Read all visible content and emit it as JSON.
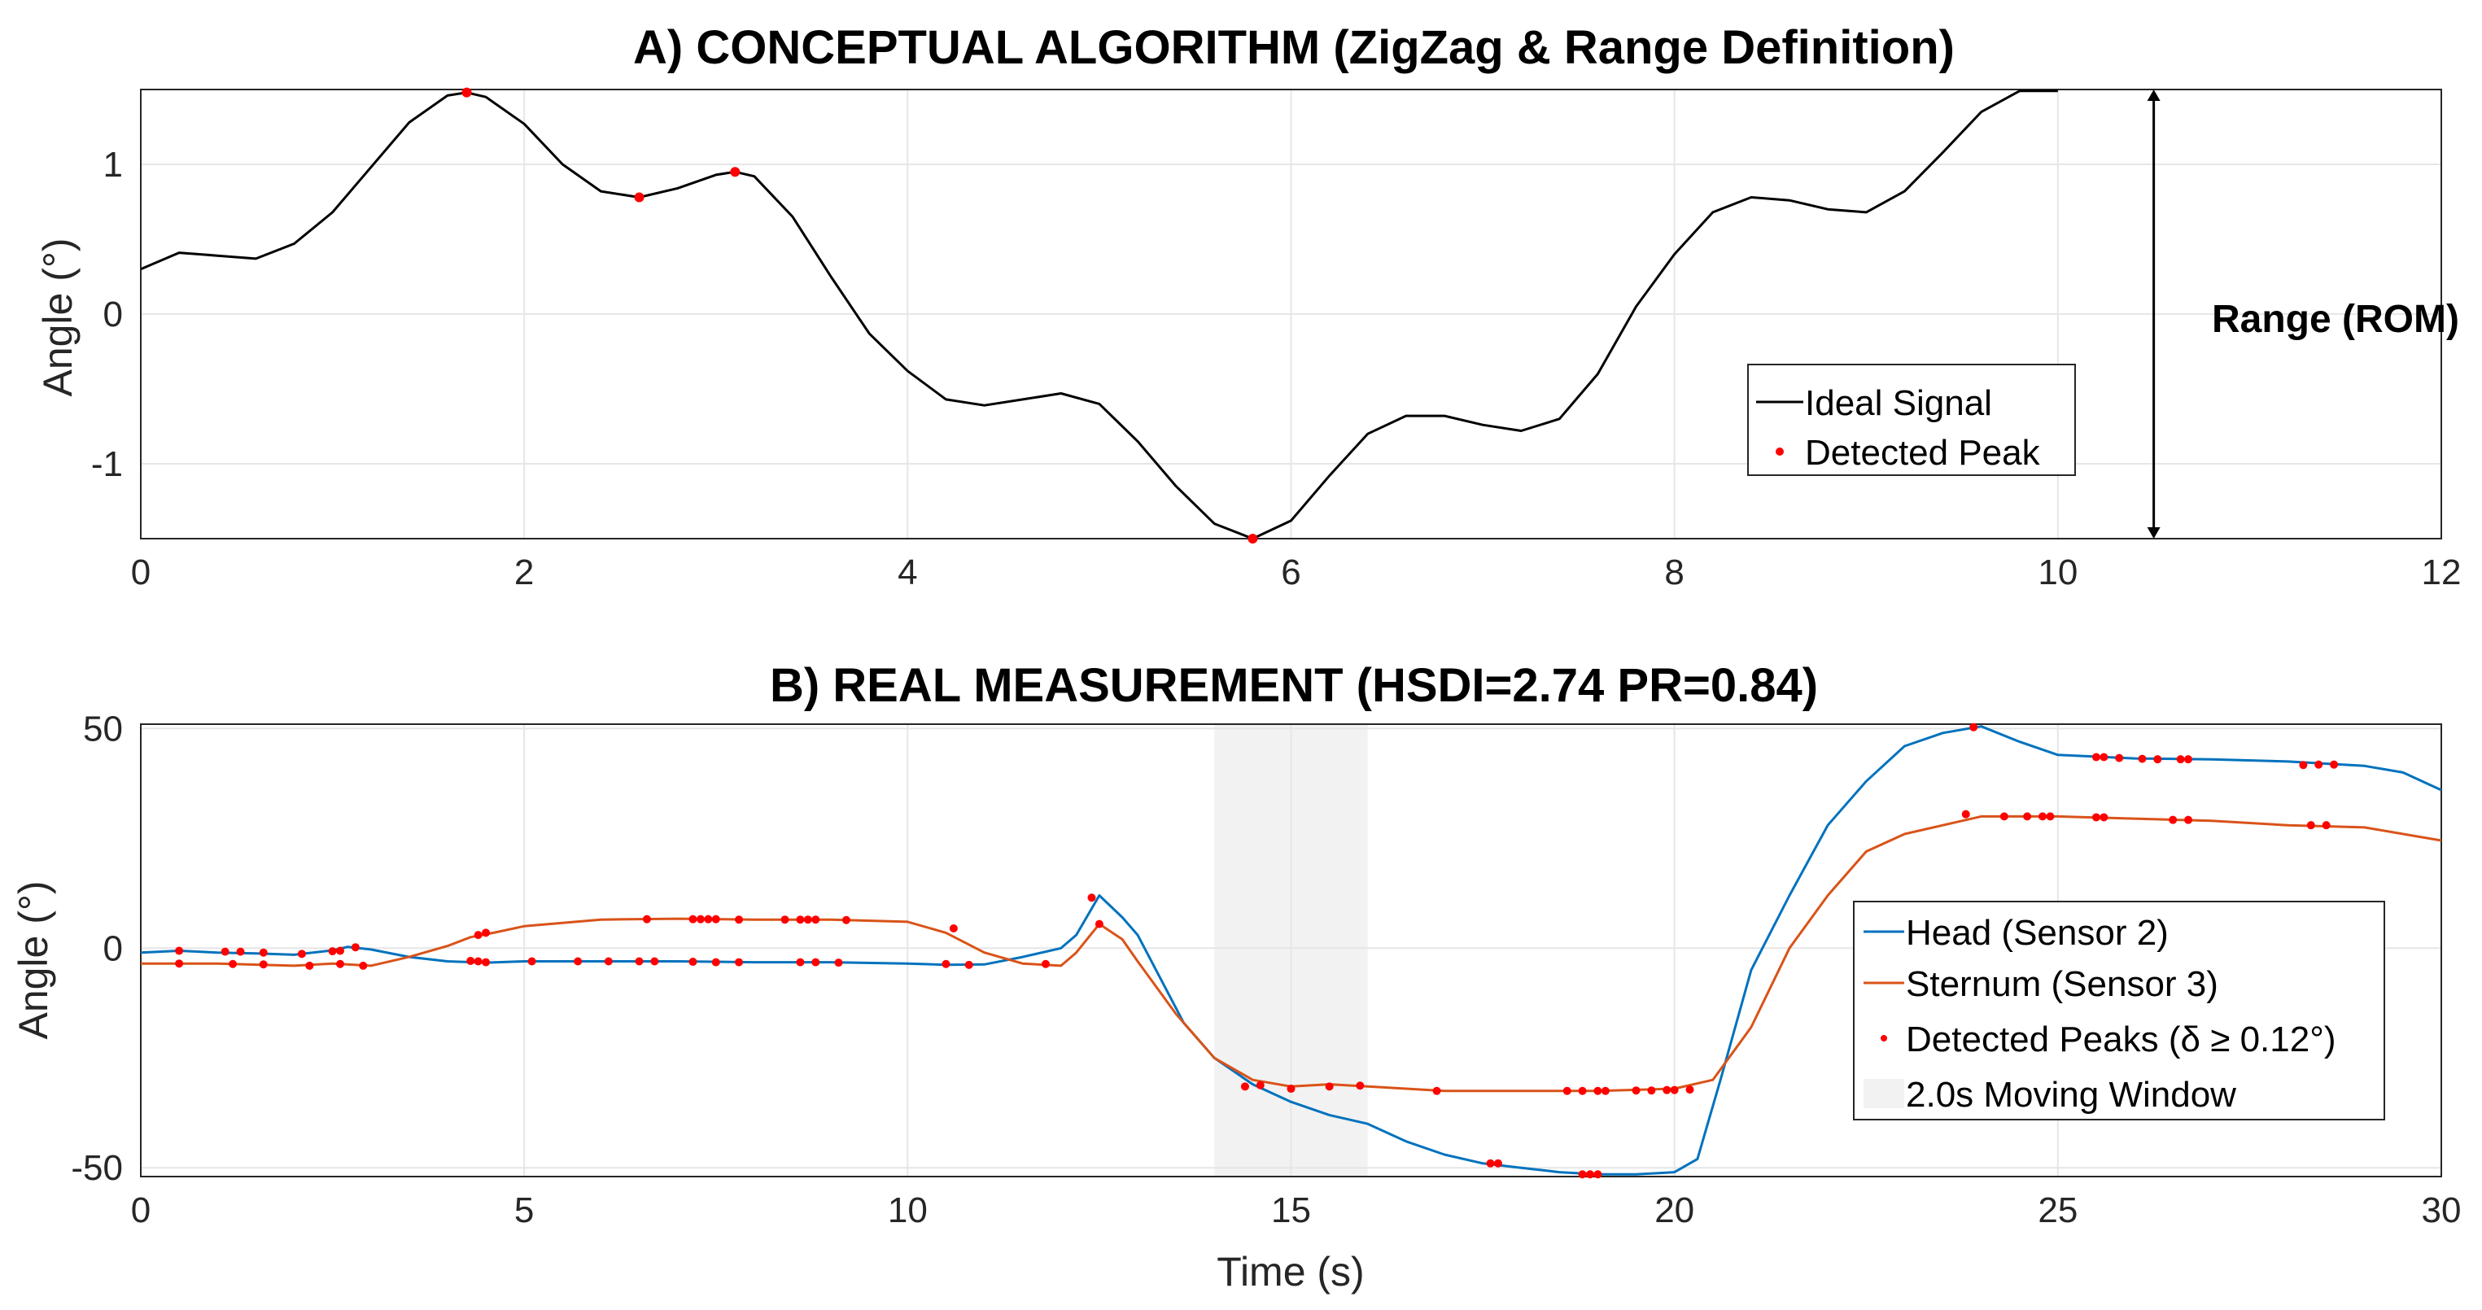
{
  "chart_data": [
    {
      "type": "line",
      "title": "A) CONCEPTUAL ALGORITHM (ZigZag & Range Definition)",
      "xlabel": "",
      "ylabel": "Angle (°)",
      "xlim": [
        0,
        12
      ],
      "ylim": [
        -1.5,
        1.5
      ],
      "xticks": [
        "0",
        "2",
        "4",
        "6",
        "8",
        "10",
        "12"
      ],
      "yticks": [
        "-1",
        "0",
        "1"
      ],
      "grid": true,
      "legend_position": "lower-right",
      "colors": {
        "signal": "#000000",
        "peak": "#ff0000"
      },
      "series": [
        {
          "name": "Ideal Signal",
          "x": [
            0,
            0.2,
            0.4,
            0.6,
            0.8,
            1.0,
            1.2,
            1.4,
            1.6,
            1.7,
            1.8,
            2.0,
            2.2,
            2.4,
            2.6,
            2.8,
            3.0,
            3.1,
            3.2,
            3.4,
            3.6,
            3.8,
            4.0,
            4.2,
            4.4,
            4.6,
            4.8,
            5.0,
            5.2,
            5.4,
            5.6,
            5.8,
            6.0,
            6.2,
            6.4,
            6.6,
            6.8,
            7.0,
            7.2,
            7.4,
            7.6,
            7.8,
            8.0,
            8.2,
            8.4,
            8.6,
            8.8,
            9.0,
            9.2,
            9.4,
            9.6,
            9.8,
            10.0
          ],
          "y": [
            0.3,
            0.41,
            0.39,
            0.37,
            0.47,
            0.68,
            0.98,
            1.28,
            1.46,
            1.48,
            1.45,
            1.27,
            1.0,
            0.82,
            0.78,
            0.84,
            0.93,
            0.95,
            0.92,
            0.65,
            0.25,
            -0.13,
            -0.38,
            -0.57,
            -0.61,
            -0.57,
            -0.53,
            -0.6,
            -0.85,
            -1.15,
            -1.4,
            -1.5,
            -1.38,
            -1.08,
            -0.8,
            -0.68,
            -0.68,
            -0.74,
            -0.78,
            -0.7,
            -0.4,
            0.05,
            0.4,
            0.68,
            0.78,
            0.76,
            0.7,
            0.68,
            0.82,
            1.08,
            1.35,
            1.49,
            1.49
          ]
        },
        {
          "name": "Detected Peak",
          "x": [
            1.7,
            2.6,
            3.1,
            5.8
          ],
          "y": [
            1.48,
            0.78,
            0.95,
            -1.5
          ]
        }
      ],
      "annotations": [
        {
          "text": "Range (ROM)",
          "x_span": [
            10.5,
            10.5
          ],
          "y_span": [
            -1.5,
            1.5
          ]
        }
      ]
    },
    {
      "type": "line",
      "title": "B) REAL MEASUREMENT (HSDI=2.74 PR=0.84)",
      "xlabel": "Time (s)",
      "ylabel": "Angle (°)",
      "xlim": [
        0,
        30
      ],
      "ylim": [
        -52,
        51
      ],
      "xticks": [
        "0",
        "5",
        "10",
        "15",
        "20",
        "25",
        "30"
      ],
      "yticks": [
        "-50",
        "0",
        "50"
      ],
      "grid": true,
      "legend_position": "lower-right",
      "colors": {
        "head": "#0072bd",
        "sternum": "#d95319",
        "peaks": "#ff0000",
        "window": "#f2f2f2"
      },
      "window": {
        "name": "2.0s Moving Window",
        "x_range": [
          14,
          16
        ]
      },
      "series": [
        {
          "name": "Head (Sensor 2)",
          "x": [
            0,
            0.5,
            1,
            1.5,
            2,
            2.5,
            2.7,
            3,
            3.5,
            4,
            4.5,
            5,
            6,
            7,
            8,
            9,
            10,
            10.5,
            11,
            11.5,
            12,
            12.2,
            12.5,
            12.8,
            13,
            13.3,
            13.6,
            14,
            14.5,
            15,
            15.5,
            16,
            16.5,
            17,
            17.5,
            18,
            18.5,
            19,
            19.5,
            20,
            20.3,
            20.6,
            21,
            21.5,
            22,
            22.5,
            23,
            23.5,
            24,
            24.5,
            25,
            26,
            27,
            28,
            29,
            29.5,
            30
          ],
          "y": [
            -1,
            -0.6,
            -1,
            -1.2,
            -1.5,
            -0.5,
            0.3,
            -0.3,
            -2,
            -3,
            -3.3,
            -3,
            -3,
            -3,
            -3.2,
            -3.2,
            -3.5,
            -3.8,
            -3.7,
            -2,
            0,
            3,
            12,
            7,
            3,
            -7,
            -17,
            -25,
            -31,
            -35,
            -38,
            -40,
            -44,
            -47,
            -49,
            -50,
            -51,
            -51.5,
            -51.5,
            -51,
            -48,
            -30,
            -5,
            12,
            28,
            38,
            46,
            49,
            50.5,
            47,
            44,
            43.2,
            43,
            42.5,
            41.5,
            40,
            36
          ]
        },
        {
          "name": "Sternum (Sensor 3)",
          "x": [
            0,
            1,
            2,
            2.5,
            3,
            3.5,
            4,
            4.3,
            4.6,
            5,
            6,
            7,
            8,
            9,
            10,
            10.5,
            11,
            11.5,
            12,
            12.2,
            12.5,
            12.8,
            13,
            13.5,
            14,
            14.5,
            15,
            15.5,
            16,
            17,
            18,
            19,
            20,
            20.5,
            21,
            21.5,
            22,
            22.5,
            23,
            24,
            25,
            26,
            27,
            28,
            29,
            30
          ],
          "y": [
            -3.5,
            -3.5,
            -4,
            -3.5,
            -4,
            -2,
            0.5,
            2.5,
            3.5,
            5,
            6.5,
            6.7,
            6.5,
            6.5,
            6,
            3.5,
            -1,
            -3.5,
            -4,
            -1,
            5.5,
            2,
            -3,
            -15,
            -25,
            -30,
            -31.5,
            -31,
            -31.5,
            -32.5,
            -32.5,
            -32.5,
            -32,
            -30,
            -18,
            0,
            12,
            22,
            26,
            30,
            30,
            29.5,
            29,
            28,
            27.5,
            24.5
          ]
        },
        {
          "name": "Detected Peaks (δ ≥ 0.12°)",
          "x": [
            0.5,
            1.1,
            1.3,
            1.6,
            2.1,
            2.5,
            2.6,
            2.8,
            4.3,
            4.4,
            4.5,
            5.1,
            5.7,
            6.1,
            6.5,
            6.7,
            7.2,
            7.5,
            7.8,
            8.6,
            8.8,
            9.1,
            10.5,
            10.8,
            12.4,
            0.5,
            1.2,
            1.6,
            2.2,
            2.6,
            2.9,
            4.4,
            4.5,
            6.6,
            7.2,
            7.3,
            7.4,
            7.5,
            7.8,
            8.4,
            8.6,
            8.7,
            8.8,
            9.2,
            10.6,
            11.8,
            12.5,
            14.4,
            15.0,
            15.5,
            15.9,
            17.6,
            17.7,
            18.8,
            18.9,
            19.0,
            14.6,
            16.9,
            18.6,
            18.8,
            19.0,
            19.1,
            19.5,
            19.7,
            19.9,
            20.0,
            20.2,
            23.9,
            25.5,
            25.6,
            25.8,
            26.1,
            26.3,
            26.6,
            26.7,
            28.2,
            28.4,
            28.6,
            23.8,
            24.3,
            24.6,
            24.8,
            24.9,
            25.5,
            25.6,
            26.5,
            26.7,
            28.3,
            28.5
          ],
          "y": [
            -0.6,
            -0.8,
            -0.8,
            -1,
            -1.3,
            -0.7,
            -0.6,
            0.2,
            -2.9,
            -3,
            -3.2,
            -3,
            -3,
            -3,
            -3,
            -3,
            -3.1,
            -3.2,
            -3.2,
            -3.2,
            -3.2,
            -3.3,
            -3.6,
            -3.8,
            11.5,
            -3.5,
            -3.6,
            -3.7,
            -4,
            -3.6,
            -4,
            3,
            3.5,
            6.6,
            6.6,
            6.6,
            6.6,
            6.6,
            6.5,
            6.5,
            6.5,
            6.5,
            6.5,
            6.4,
            4.5,
            -3.6,
            5.5,
            -31.5,
            -32,
            -31.5,
            -31.3,
            -49,
            -49,
            -51.5,
            -51.5,
            -51.5,
            -31.2,
            -32.5,
            -32.5,
            -32.5,
            -32.5,
            -32.5,
            -32.4,
            -32.4,
            -32.3,
            -32.3,
            -32.2,
            50.3,
            43.5,
            43.5,
            43.3,
            43.1,
            43,
            43,
            43,
            41.7,
            41.8,
            41.8,
            30.5,
            30,
            30,
            30,
            30,
            29.8,
            29.8,
            29.2,
            29.2,
            28,
            28
          ]
        }
      ]
    }
  ]
}
